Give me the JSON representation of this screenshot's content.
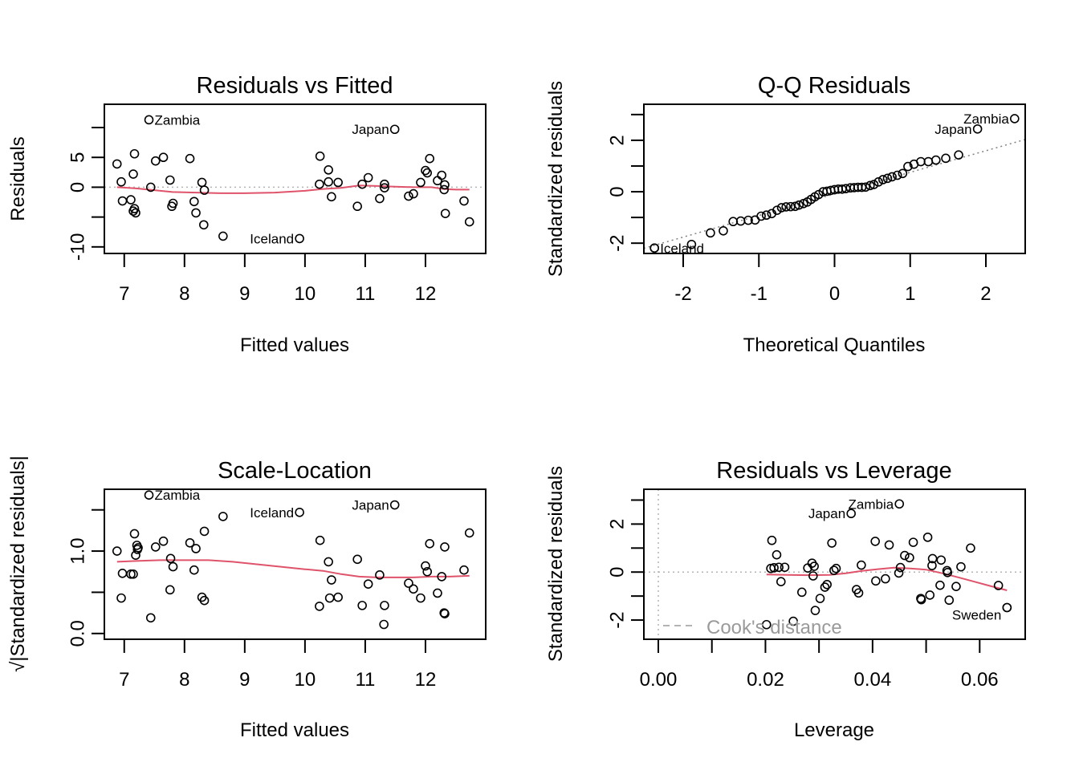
{
  "chart_data": [
    {
      "type": "scatter",
      "title": "Residuals vs Fitted",
      "xlabel": "Fitted values",
      "ylabel": "Residuals",
      "xlim": [
        6.67,
        13.0
      ],
      "ylim": [
        -11.1,
        13.9
      ],
      "xticks": [
        7,
        8,
        9,
        10,
        11,
        12
      ],
      "xtick_labels": [
        "7",
        "8",
        "9",
        "10",
        "11",
        "12"
      ],
      "yticks": [
        10,
        5,
        0,
        -5,
        -10
      ],
      "ytick_labels": [
        "",
        "5",
        "0",
        "",
        "-10"
      ],
      "hline": {
        "y": 0,
        "style": "dotted",
        "color": "#b3b3b3"
      },
      "points": [
        [
          6.88,
          3.9
        ],
        [
          6.95,
          0.9
        ],
        [
          6.97,
          -2.3
        ],
        [
          7.11,
          -2.1
        ],
        [
          7.17,
          -3.6
        ],
        [
          7.19,
          -4.3
        ],
        [
          7.15,
          -4.0
        ],
        [
          7.15,
          2.2
        ],
        [
          7.17,
          5.6
        ],
        [
          7.44,
          0.0
        ],
        [
          7.52,
          4.4
        ],
        [
          7.65,
          5.0
        ],
        [
          7.76,
          1.2
        ],
        [
          7.81,
          -2.7
        ],
        [
          7.79,
          -3.2
        ],
        [
          8.09,
          4.8
        ],
        [
          8.16,
          -2.4
        ],
        [
          8.19,
          -4.3
        ],
        [
          8.29,
          0.8
        ],
        [
          8.33,
          -0.5
        ],
        [
          8.32,
          -6.3
        ],
        [
          8.64,
          -8.2
        ],
        [
          10.25,
          5.2
        ],
        [
          10.39,
          2.9
        ],
        [
          10.24,
          0.5
        ],
        [
          10.39,
          0.9
        ],
        [
          10.55,
          0.8
        ],
        [
          10.44,
          -1.6
        ],
        [
          10.87,
          -3.2
        ],
        [
          10.95,
          0.5
        ],
        [
          11.05,
          1.6
        ],
        [
          11.32,
          0.5
        ],
        [
          11.32,
          -0.1
        ],
        [
          11.24,
          -1.9
        ],
        [
          11.72,
          -1.5
        ],
        [
          11.8,
          -1.1
        ],
        [
          11.92,
          0.8
        ],
        [
          12.07,
          4.8
        ],
        [
          12.0,
          2.8
        ],
        [
          12.03,
          2.4
        ],
        [
          12.2,
          1.1
        ],
        [
          12.27,
          2.0
        ],
        [
          12.32,
          0.4
        ],
        [
          12.31,
          -0.4
        ],
        [
          12.33,
          -4.4
        ],
        [
          12.64,
          -2.3
        ],
        [
          12.73,
          -5.8
        ]
      ],
      "labeled_points": [
        {
          "label": "Zambia",
          "x": 7.41,
          "y": 11.3
        },
        {
          "label": "Japan",
          "x": 11.49,
          "y": 9.7
        },
        {
          "label": "Iceland",
          "x": 9.91,
          "y": -8.6
        }
      ],
      "smooth": {
        "color": "#DF536B",
        "x": [
          6.88,
          7.2,
          7.5,
          7.8,
          8.2,
          8.6,
          9.0,
          9.5,
          10.0,
          10.3,
          10.6,
          10.9,
          11.2,
          11.5,
          11.8,
          12.1,
          12.3,
          12.5,
          12.73
        ],
        "y": [
          0.0,
          -0.2,
          -0.5,
          -0.8,
          -0.9,
          -1.0,
          -1.0,
          -0.9,
          -0.6,
          -0.3,
          -0.1,
          0.3,
          0.2,
          0.1,
          0.0,
          0.0,
          -0.3,
          -0.4,
          -0.4
        ]
      }
    },
    {
      "type": "scatter",
      "title": "Q-Q Residuals",
      "xlabel": "Theoretical Quantiles",
      "ylabel": "Standardized residuals",
      "xlim": [
        -2.52,
        2.52
      ],
      "ylim": [
        -2.4,
        3.4
      ],
      "xticks": [
        -2,
        -1,
        0,
        1,
        2
      ],
      "xtick_labels": [
        "-2",
        "-1",
        "0",
        "1",
        "2"
      ],
      "yticks": [
        3,
        2,
        1,
        0,
        -1,
        -2
      ],
      "ytick_labels": [
        "",
        "2",
        "",
        "0",
        "",
        "-2"
      ],
      "reference_line": {
        "x": [
          -2.52,
          2.52
        ],
        "y": [
          -2.2,
          2.03
        ],
        "style": "dotted",
        "color": "#808080"
      },
      "points": [
        [
          -2.38,
          -2.19
        ],
        [
          -1.89,
          -2.05
        ],
        [
          -1.64,
          -1.6
        ],
        [
          -1.47,
          -1.52
        ],
        [
          -1.34,
          -1.16
        ],
        [
          -1.24,
          -1.14
        ],
        [
          -1.14,
          -1.11
        ],
        [
          -1.05,
          -1.1
        ],
        [
          -0.97,
          -0.95
        ],
        [
          -0.9,
          -0.91
        ],
        [
          -0.83,
          -0.85
        ],
        [
          -0.76,
          -0.72
        ],
        [
          -0.7,
          -0.62
        ],
        [
          -0.64,
          -0.59
        ],
        [
          -0.58,
          -0.58
        ],
        [
          -0.52,
          -0.57
        ],
        [
          -0.47,
          -0.52
        ],
        [
          -0.41,
          -0.46
        ],
        [
          -0.36,
          -0.4
        ],
        [
          -0.31,
          -0.3
        ],
        [
          -0.26,
          -0.2
        ],
        [
          -0.21,
          -0.11
        ],
        [
          -0.15,
          0.0
        ],
        [
          -0.1,
          0.02
        ],
        [
          -0.05,
          0.05
        ],
        [
          0.0,
          0.08
        ],
        [
          0.05,
          0.1
        ],
        [
          0.1,
          0.1
        ],
        [
          0.15,
          0.12
        ],
        [
          0.21,
          0.15
        ],
        [
          0.26,
          0.16
        ],
        [
          0.31,
          0.17
        ],
        [
          0.36,
          0.17
        ],
        [
          0.41,
          0.18
        ],
        [
          0.47,
          0.24
        ],
        [
          0.52,
          0.28
        ],
        [
          0.58,
          0.38
        ],
        [
          0.64,
          0.47
        ],
        [
          0.7,
          0.52
        ],
        [
          0.76,
          0.58
        ],
        [
          0.83,
          0.64
        ],
        [
          0.9,
          0.71
        ],
        [
          0.97,
          0.98
        ],
        [
          1.05,
          1.07
        ],
        [
          1.14,
          1.17
        ],
        [
          1.24,
          1.17
        ],
        [
          1.34,
          1.23
        ],
        [
          1.47,
          1.3
        ],
        [
          1.64,
          1.43
        ]
      ],
      "labeled_points": [
        {
          "label": "Zambia",
          "x": 2.38,
          "y": 2.84
        },
        {
          "label": "Japan",
          "x": 1.89,
          "y": 2.44
        },
        {
          "label": "Iceland",
          "x": -2.38,
          "y": -2.19
        }
      ]
    },
    {
      "type": "scatter",
      "title": "Scale-Location",
      "xlabel": "Fitted values",
      "ylabel": "√|Standardized residuals|",
      "xlim": [
        6.67,
        13.0
      ],
      "ylim": [
        -0.07,
        1.75
      ],
      "xticks": [
        7,
        8,
        9,
        10,
        11,
        12
      ],
      "xtick_labels": [
        "7",
        "8",
        "9",
        "10",
        "11",
        "12"
      ],
      "yticks": [
        1.5,
        1.0,
        0.5,
        0.0
      ],
      "ytick_labels": [
        "",
        "1.0",
        "",
        "0.0"
      ],
      "points": [
        [
          6.88,
          1.0
        ],
        [
          6.95,
          0.43
        ],
        [
          6.97,
          0.73
        ],
        [
          7.11,
          0.72
        ],
        [
          7.15,
          0.72
        ],
        [
          7.19,
          0.95
        ],
        [
          7.17,
          1.21
        ],
        [
          7.21,
          1.07
        ],
        [
          7.22,
          1.02
        ],
        [
          7.23,
          1.04
        ],
        [
          7.44,
          0.19
        ],
        [
          7.52,
          1.05
        ],
        [
          7.65,
          1.12
        ],
        [
          7.76,
          0.53
        ],
        [
          7.77,
          0.91
        ],
        [
          7.81,
          0.81
        ],
        [
          8.09,
          1.1
        ],
        [
          8.16,
          0.77
        ],
        [
          8.19,
          1.03
        ],
        [
          8.29,
          0.44
        ],
        [
          8.33,
          0.4
        ],
        [
          8.33,
          1.24
        ],
        [
          8.64,
          1.42
        ],
        [
          10.25,
          1.13
        ],
        [
          10.24,
          0.33
        ],
        [
          10.39,
          0.87
        ],
        [
          10.41,
          0.43
        ],
        [
          10.44,
          0.65
        ],
        [
          10.55,
          0.44
        ],
        [
          10.87,
          0.9
        ],
        [
          10.95,
          0.34
        ],
        [
          11.05,
          0.6
        ],
        [
          11.24,
          0.71
        ],
        [
          11.32,
          0.34
        ],
        [
          11.31,
          0.11
        ],
        [
          11.72,
          0.61
        ],
        [
          11.8,
          0.54
        ],
        [
          11.92,
          0.43
        ],
        [
          12.0,
          0.82
        ],
        [
          12.03,
          0.75
        ],
        [
          12.07,
          1.09
        ],
        [
          12.2,
          0.49
        ],
        [
          12.27,
          0.69
        ],
        [
          12.32,
          1.05
        ],
        [
          12.31,
          0.25
        ],
        [
          12.32,
          0.24
        ],
        [
          12.64,
          0.77
        ],
        [
          12.73,
          1.22
        ]
      ],
      "labeled_points": [
        {
          "label": "Zambia",
          "x": 7.41,
          "y": 1.68
        },
        {
          "label": "Iceland",
          "x": 9.91,
          "y": 1.47
        },
        {
          "label": "Japan",
          "x": 11.49,
          "y": 1.56
        }
      ],
      "smooth": {
        "color": "#DF536B",
        "x": [
          6.88,
          7.2,
          7.6,
          8.0,
          8.4,
          8.8,
          9.2,
          9.6,
          10.0,
          10.3,
          10.6,
          10.9,
          11.2,
          11.5,
          11.8,
          12.1,
          12.4,
          12.73
        ],
        "y": [
          0.87,
          0.88,
          0.89,
          0.89,
          0.89,
          0.87,
          0.84,
          0.81,
          0.78,
          0.76,
          0.72,
          0.69,
          0.68,
          0.68,
          0.68,
          0.69,
          0.69,
          0.7
        ]
      }
    },
    {
      "type": "scatter",
      "title": "Residuals vs Leverage",
      "xlabel": "Leverage",
      "ylabel": "Standardized residuals",
      "xlim": [
        -0.0027,
        0.0685
      ],
      "ylim": [
        -2.8,
        3.45
      ],
      "xticks": [
        0.0,
        0.01,
        0.02,
        0.03,
        0.04,
        0.05,
        0.06
      ],
      "xtick_labels": [
        "0.00",
        "",
        "0.02",
        "",
        "0.04",
        "",
        "0.06"
      ],
      "yticks": [
        3,
        2,
        1,
        0,
        -1,
        -2
      ],
      "ytick_labels": [
        "",
        "2",
        "",
        "0",
        "",
        "-2"
      ],
      "hline": {
        "y": 0,
        "style": "dotted",
        "color": "#b3b3b3"
      },
      "vline": {
        "x": 0,
        "style": "dotted",
        "color": "#b3b3b3"
      },
      "legend": {
        "label": "Cook's distance",
        "style": "dashed",
        "color": "#9a9a9a",
        "position": "bottom-left"
      },
      "points": [
        [
          0.0202,
          -2.19
        ],
        [
          0.021,
          0.15
        ],
        [
          0.0212,
          1.32
        ],
        [
          0.0216,
          0.18
        ],
        [
          0.0221,
          0.72
        ],
        [
          0.0225,
          0.2
        ],
        [
          0.0229,
          -0.4
        ],
        [
          0.0236,
          0.2
        ],
        [
          0.0252,
          -2.05
        ],
        [
          0.0268,
          -0.84
        ],
        [
          0.0279,
          0.17
        ],
        [
          0.0287,
          0.37
        ],
        [
          0.0289,
          -0.16
        ],
        [
          0.0291,
          0.24
        ],
        [
          0.0293,
          -1.6
        ],
        [
          0.0302,
          -1.1
        ],
        [
          0.0311,
          -0.63
        ],
        [
          0.0315,
          -0.52
        ],
        [
          0.0324,
          1.21
        ],
        [
          0.0328,
          0.07
        ],
        [
          0.0332,
          0.15
        ],
        [
          0.037,
          -0.73
        ],
        [
          0.0374,
          -0.87
        ],
        [
          0.0379,
          0.29
        ],
        [
          0.0405,
          1.28
        ],
        [
          0.0406,
          -0.37
        ],
        [
          0.0424,
          -0.28
        ],
        [
          0.0431,
          1.13
        ],
        [
          0.0449,
          -0.04
        ],
        [
          0.0452,
          0.19
        ],
        [
          0.046,
          0.69
        ],
        [
          0.0469,
          0.6
        ],
        [
          0.0476,
          1.24
        ],
        [
          0.049,
          -1.1
        ],
        [
          0.0491,
          -1.15
        ],
        [
          0.0503,
          1.45
        ],
        [
          0.0507,
          -0.96
        ],
        [
          0.0511,
          0.27
        ],
        [
          0.0512,
          0.56
        ],
        [
          0.0526,
          -0.55
        ],
        [
          0.0528,
          0.5
        ],
        [
          0.0539,
          0.06
        ],
        [
          0.054,
          -0.02
        ],
        [
          0.0543,
          -1.17
        ],
        [
          0.0556,
          -0.6
        ],
        [
          0.0565,
          0.22
        ],
        [
          0.0583,
          1.0
        ],
        [
          0.0635,
          -0.56
        ],
        [
          0.0651,
          -1.48
        ]
      ],
      "labeled_points": [
        {
          "label": "Zambia",
          "x": 0.045,
          "y": 2.84
        },
        {
          "label": "Japan",
          "x": 0.036,
          "y": 2.44
        },
        {
          "label": "Sweden",
          "x": 0.0651,
          "y": -1.48
        }
      ],
      "smooth": {
        "color": "#DF536B",
        "x": [
          0.0202,
          0.024,
          0.028,
          0.032,
          0.035,
          0.038,
          0.041,
          0.044,
          0.047,
          0.05,
          0.053,
          0.056,
          0.059,
          0.062,
          0.0651
        ],
        "y": [
          -0.1,
          -0.12,
          -0.13,
          -0.12,
          -0.05,
          0.05,
          0.12,
          0.18,
          0.15,
          0.1,
          -0.05,
          -0.22,
          -0.4,
          -0.58,
          -0.76
        ]
      }
    }
  ]
}
